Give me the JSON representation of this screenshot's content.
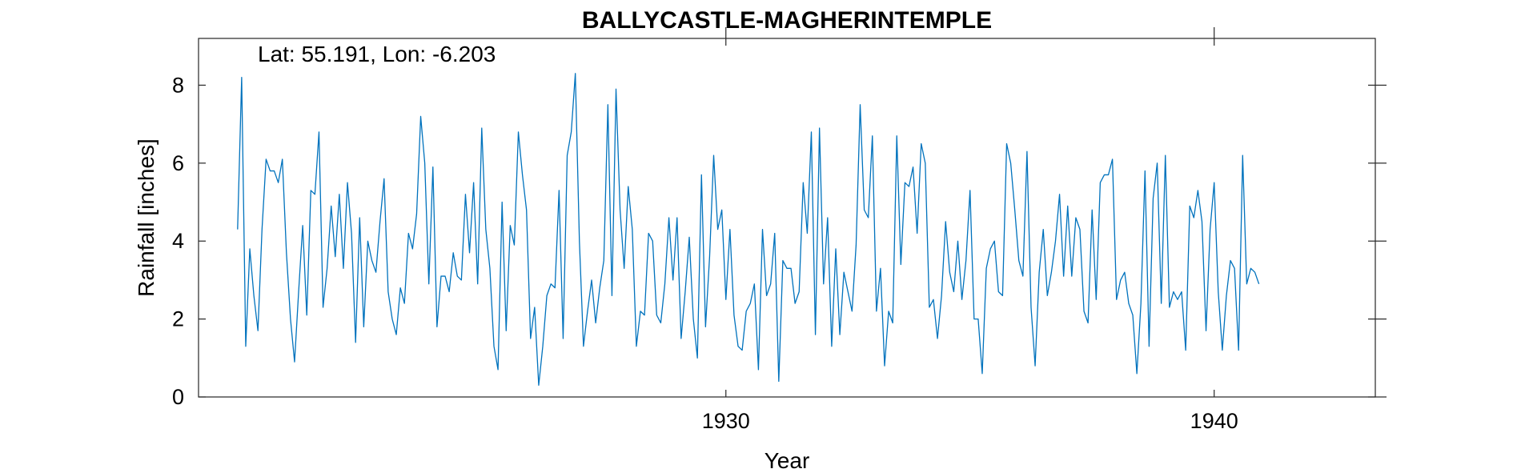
{
  "chart_data": {
    "type": "line",
    "title": "BALLYCASTLE-MAGHERINTEMPLE",
    "xlabel": "Year",
    "ylabel": "Rainfall [inches]",
    "annotation": "Lat: 55.191, Lon: -6.203",
    "xlim": [
      1919.2,
      1943.3
    ],
    "ylim": [
      0,
      9.2
    ],
    "x_ticks": [
      1930,
      1940
    ],
    "y_ticks": [
      0,
      2,
      4,
      6,
      8
    ],
    "grid": false,
    "series_color": "#0072BD",
    "series": [
      {
        "x_start": 1920.0,
        "x_step": 0.08333333,
        "values": [
          4.3,
          8.2,
          1.3,
          3.8,
          2.6,
          1.7,
          4.3,
          6.1,
          5.8,
          5.8,
          5.5,
          6.1,
          3.7,
          2.0,
          0.9,
          2.7,
          4.4,
          2.1,
          5.3,
          5.2,
          6.8,
          2.3,
          3.3,
          4.9,
          3.6,
          5.2,
          3.3,
          5.5,
          4.2,
          1.4,
          4.6,
          1.8,
          4.0,
          3.5,
          3.2,
          4.5,
          5.6,
          2.7,
          2.0,
          1.6,
          2.8,
          2.4,
          4.2,
          3.8,
          4.7,
          7.2,
          6.0,
          2.9,
          5.9,
          1.8,
          3.1,
          3.1,
          2.7,
          3.7,
          3.1,
          3.0,
          5.2,
          3.7,
          5.5,
          2.9,
          6.9,
          4.3,
          3.3,
          1.3,
          0.7,
          5.0,
          1.7,
          4.4,
          3.9,
          6.8,
          5.7,
          4.8,
          1.5,
          2.3,
          0.3,
          1.3,
          2.6,
          2.9,
          2.8,
          5.3,
          1.5,
          6.2,
          6.8,
          8.3,
          4.0,
          1.3,
          2.2,
          3.0,
          1.9,
          2.8,
          3.5,
          7.5,
          2.6,
          7.9,
          4.8,
          3.3,
          5.4,
          4.3,
          1.3,
          2.2,
          2.1,
          4.2,
          4.0,
          2.1,
          1.9,
          2.9,
          4.6,
          3.0,
          4.6,
          1.5,
          2.7,
          4.1,
          2.0,
          1.0,
          5.7,
          1.8,
          3.6,
          6.2,
          4.3,
          4.8,
          2.5,
          4.3,
          2.1,
          1.3,
          1.2,
          2.2,
          2.4,
          2.9,
          0.7,
          4.3,
          2.6,
          2.9,
          4.2,
          0.4,
          3.5,
          3.3,
          3.3,
          2.4,
          2.7,
          5.5,
          4.2,
          6.8,
          1.6,
          6.9,
          2.9,
          4.6,
          1.3,
          3.8,
          1.6,
          3.2,
          2.7,
          2.2,
          3.9,
          7.5,
          4.8,
          4.6,
          6.7,
          2.2,
          3.3,
          0.8,
          2.2,
          1.9,
          6.7,
          3.4,
          5.5,
          5.4,
          5.9,
          4.2,
          6.5,
          6.0,
          2.3,
          2.5,
          1.5,
          2.6,
          4.5,
          3.2,
          2.7,
          4.0,
          2.5,
          3.5,
          5.3,
          2.0,
          2.0,
          0.6,
          3.3,
          3.8,
          4.0,
          2.7,
          2.6,
          6.5,
          6.0,
          4.8,
          3.5,
          3.1,
          6.3,
          2.3,
          0.8,
          3.2,
          4.3,
          2.6,
          3.2,
          4.0,
          5.2,
          3.1,
          4.9,
          3.1,
          4.6,
          4.3,
          2.2,
          1.9,
          4.8,
          2.5,
          5.5,
          5.7,
          5.7,
          6.1,
          2.5,
          3.0,
          3.2,
          2.4,
          2.1,
          0.6,
          2.4,
          5.8,
          1.3,
          5.1,
          6.0,
          2.4,
          6.2,
          2.3,
          2.7,
          2.5,
          2.7,
          1.2,
          4.9,
          4.6,
          5.3,
          4.5,
          1.7,
          4.3,
          5.5,
          2.7,
          1.2,
          2.6,
          3.5,
          3.3,
          1.2,
          6.2,
          2.9,
          3.3,
          3.2,
          2.9
        ]
      }
    ]
  }
}
